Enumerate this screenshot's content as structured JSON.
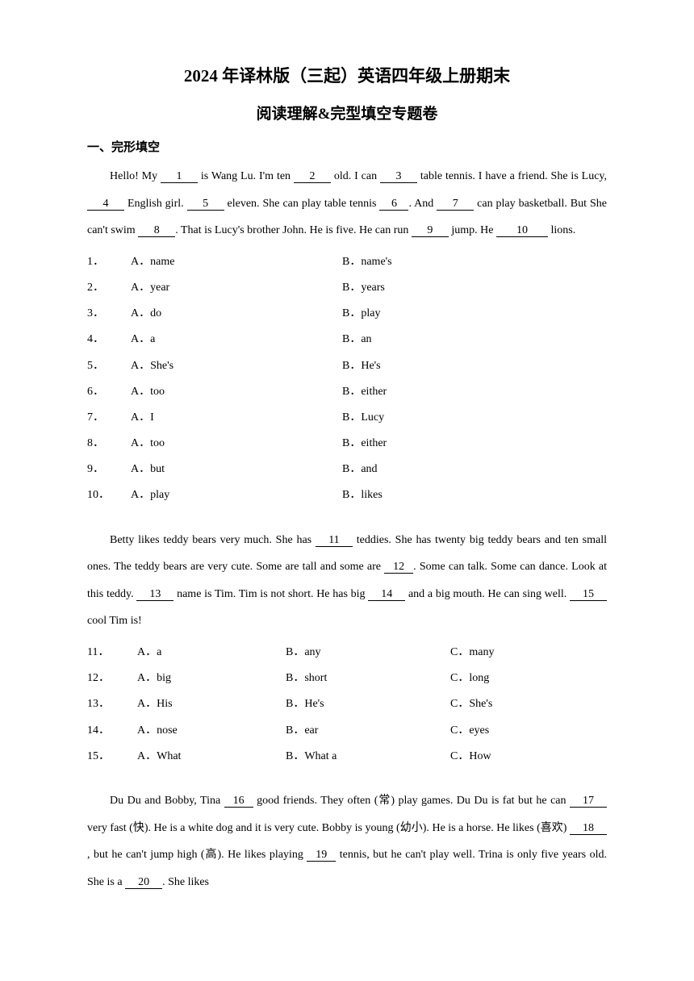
{
  "titles": {
    "main": "2024 年译林版（三起）英语四年级上册期末",
    "sub": "阅读理解&完型填空专题卷"
  },
  "section1_heading": "一、完形填空",
  "passage1": {
    "t0": "Hello! My ",
    "b1": "1",
    "t1": " is Wang Lu. I'm ten ",
    "b2": "2",
    "t2": " old. I can ",
    "b3": "3",
    "t3": " table tennis. I have a friend. She is Lucy, ",
    "b4": "4",
    "t4": " English girl. ",
    "b5": "5",
    "t5": " eleven. She can play table tennis ",
    "b6": "6",
    "t6": ". And ",
    "b7": "7",
    "t7": " can play basketball. But She can't swim ",
    "b8": "8",
    "t8": ". That is Lucy's brother John. He is five. He can run ",
    "b9": "9",
    "t9": " jump. He ",
    "b10": "10",
    "t10": " lions."
  },
  "options1": [
    {
      "n": "1．",
      "a": "A．name",
      "b": "B．name's"
    },
    {
      "n": "2．",
      "a": "A．year",
      "b": "B．years"
    },
    {
      "n": "3．",
      "a": "A．do",
      "b": "B．play"
    },
    {
      "n": "4．",
      "a": "A．a",
      "b": "B．an"
    },
    {
      "n": "5．",
      "a": "A．She's",
      "b": "B．He's"
    },
    {
      "n": "6．",
      "a": "A．too",
      "b": "B．either"
    },
    {
      "n": "7．",
      "a": "A．I",
      "b": "B．Lucy"
    },
    {
      "n": "8．",
      "a": "A．too",
      "b": "B．either"
    },
    {
      "n": "9．",
      "a": "A．but",
      "b": "B．and"
    },
    {
      "n": "10．",
      "a": "A．play",
      "b": "B．likes"
    }
  ],
  "passage2": {
    "t0": "Betty likes teddy bears very much. She has ",
    "b11": "11",
    "t1": " teddies. She has twenty big teddy bears and ten small ones. The teddy bears are very cute. Some are tall and some are ",
    "b12": "12",
    "t2": ". Some can talk. Some can dance. Look at this teddy. ",
    "b13": "13",
    "t3": " name is Tim. Tim is not short. He has big ",
    "b14": "14",
    "t4": " and a big mouth. He can sing well. ",
    "b15": "15",
    "t5": " cool Tim is!"
  },
  "options2": [
    {
      "n": "11．",
      "a": "A．a",
      "b": "B．any",
      "c": "C．many"
    },
    {
      "n": "12．",
      "a": "A．big",
      "b": "B．short",
      "c": "C．long"
    },
    {
      "n": "13．",
      "a": "A．His",
      "b": "B．He's",
      "c": "C．She's"
    },
    {
      "n": "14．",
      "a": "A．nose",
      "b": "B．ear",
      "c": "C．eyes"
    },
    {
      "n": "15．",
      "a": "A．What",
      "b": "B．What a",
      "c": "C．How"
    }
  ],
  "passage3": {
    "t0": "Du Du and Bobby, Tina ",
    "b16": "16",
    "t1": " good friends. They often (常) play games. Du Du is fat but he can ",
    "b17": "17",
    "t2": " very fast (快). He is a white dog and it is very cute. Bobby is young (幼小). He is a horse. He likes (喜欢) ",
    "b18": "18",
    "t3": ", but he can't jump high (高). He likes playing ",
    "b19": "19",
    "t4": " tennis, but he can't play well. Trina is only five years old. She is a ",
    "b20": "20",
    "t5": ". She likes"
  }
}
